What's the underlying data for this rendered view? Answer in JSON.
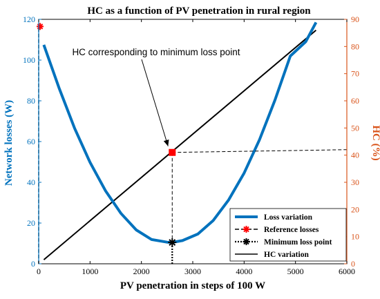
{
  "chart_data": {
    "type": "line",
    "title": "HC as a function of PV penetration in rural region",
    "xlabel": "PV penetration in steps of 100 W",
    "ylabel_left": "Network losses (W)",
    "ylabel_right": "HC (%)",
    "xlim": [
      0,
      6000
    ],
    "ylim_left": [
      0,
      120
    ],
    "ylim_right": [
      0,
      90
    ],
    "xticks": [
      "0",
      "1000",
      "2000",
      "3000",
      "4000",
      "5000",
      "6000"
    ],
    "yticks_left": [
      "0",
      "20",
      "40",
      "60",
      "80",
      "100",
      "120"
    ],
    "yticks_right": [
      "0",
      "10",
      "20",
      "30",
      "40",
      "50",
      "60",
      "70",
      "80",
      "90"
    ],
    "grid": false,
    "legend_position": "bottom-right",
    "colors": {
      "loss": "#0072BD",
      "hc": "#000000",
      "reference": "#FF0000",
      "minimum": "#000000",
      "hc_point": "#FF0000",
      "right_axis": "#D95319"
    },
    "series": [
      {
        "name": "Loss variation",
        "axis": "left",
        "style": "solid-thick",
        "x": [
          100,
          400,
          700,
          1000,
          1300,
          1600,
          1900,
          2200,
          2500,
          2600,
          2800,
          3100,
          3400,
          3700,
          4000,
          4300,
          4600,
          4900,
          5200,
          5400
        ],
        "y": [
          107.5,
          86.1,
          66.5,
          49.8,
          35.9,
          24.8,
          16.6,
          11.9,
          10.6,
          10.5,
          11.4,
          14.6,
          21.3,
          31.4,
          44.5,
          60.9,
          80.3,
          102.0,
          109.0,
          118.5
        ]
      },
      {
        "name": "Reference losses",
        "axis": "left",
        "style": "dashed-star",
        "x": [
          0,
          0
        ],
        "y": [
          0,
          116.5
        ]
      },
      {
        "name": "Minimum loss point",
        "axis": "left",
        "style": "dotted-star",
        "x": [
          2600,
          2600
        ],
        "y": [
          0,
          10.5
        ]
      },
      {
        "name": "HC variation",
        "axis": "right",
        "style": "solid",
        "x": [
          100,
          5400
        ],
        "y": [
          1.5,
          86
        ]
      }
    ],
    "annotations": [
      {
        "text": "HC corresponding to minimum loss point",
        "x": 2600,
        "y_right": 41
      }
    ],
    "hc_point": {
      "x": 2600,
      "y_right": 41
    }
  }
}
